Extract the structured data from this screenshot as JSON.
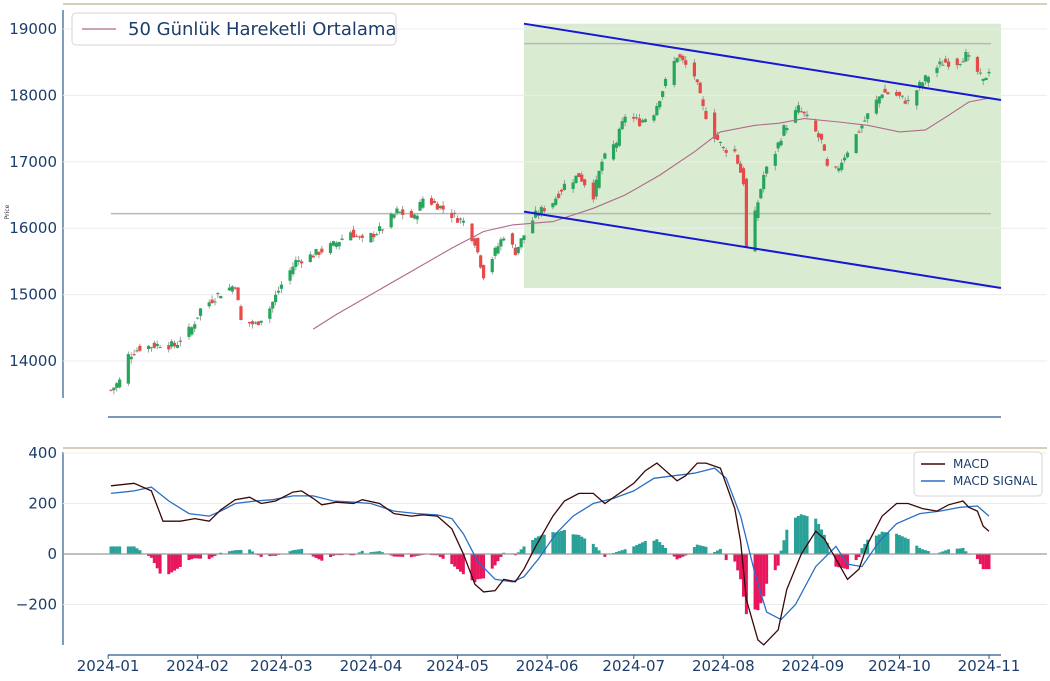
{
  "chart_data": [
    {
      "type": "candlestick",
      "panel": "price",
      "ylabel": "Price",
      "ylim": [
        13400,
        19200
      ],
      "yticks": [
        14000,
        15000,
        16000,
        17000,
        18000,
        19000
      ],
      "grid": "horizontal",
      "legend": {
        "position": "top-left",
        "entries": [
          "50 Günlük Hareketli Ortalama"
        ]
      },
      "colors": {
        "up": "#26a65b",
        "down": "#e84a4a",
        "ma": "#b06a8a",
        "channel": "#1717d4",
        "channel_fill": "#d9ecd1",
        "hline": "#b8b8b8"
      },
      "date_start": "2024-01-02",
      "date_end": "2024-11-01",
      "ohlc_anchor_closes": [
        [
          "2024-01-02",
          13560
        ],
        [
          "2024-01-05",
          13700
        ],
        [
          "2024-01-08",
          14080
        ],
        [
          "2024-01-12",
          14200
        ],
        [
          "2024-01-19",
          14250
        ],
        [
          "2024-01-24",
          14230
        ],
        [
          "2024-01-30",
          14500
        ],
        [
          "2024-02-02",
          14780
        ],
        [
          "2024-02-08",
          15000
        ],
        [
          "2024-02-14",
          15150
        ],
        [
          "2024-02-16",
          14600
        ],
        [
          "2024-02-21",
          14550
        ],
        [
          "2024-02-26",
          14800
        ],
        [
          "2024-03-01",
          15150
        ],
        [
          "2024-03-06",
          15500
        ],
        [
          "2024-03-12",
          15600
        ],
        [
          "2024-03-19",
          15750
        ],
        [
          "2024-03-25",
          15950
        ],
        [
          "2024-03-29",
          15800
        ],
        [
          "2024-04-05",
          16000
        ],
        [
          "2024-04-10",
          16250
        ],
        [
          "2024-04-16",
          16150
        ],
        [
          "2024-04-19",
          16450
        ],
        [
          "2024-04-24",
          16350
        ],
        [
          "2024-04-29",
          16200
        ],
        [
          "2024-05-03",
          16100
        ],
        [
          "2024-05-07",
          15800
        ],
        [
          "2024-05-10",
          15300
        ],
        [
          "2024-05-14",
          15650
        ],
        [
          "2024-05-17",
          15900
        ],
        [
          "2024-05-21",
          15650
        ],
        [
          "2024-05-24",
          15900
        ],
        [
          "2024-05-28",
          16200
        ],
        [
          "2024-06-03",
          16400
        ],
        [
          "2024-06-07",
          16650
        ],
        [
          "2024-06-12",
          16800
        ],
        [
          "2024-06-17",
          16500
        ],
        [
          "2024-06-20",
          17000
        ],
        [
          "2024-06-25",
          17300
        ],
        [
          "2024-06-28",
          17700
        ],
        [
          "2024-07-03",
          17600
        ],
        [
          "2024-07-08",
          17750
        ],
        [
          "2024-07-12",
          18200
        ],
        [
          "2024-07-16",
          18600
        ],
        [
          "2024-07-19",
          18450
        ],
        [
          "2024-07-22",
          18300
        ],
        [
          "2024-07-25",
          17800
        ],
        [
          "2024-07-29",
          17400
        ],
        [
          "2024-08-01",
          17200
        ],
        [
          "2024-08-05",
          17150
        ],
        [
          "2024-08-08",
          16700
        ],
        [
          "2024-08-09",
          15700
        ],
        [
          "2024-08-12",
          16200
        ],
        [
          "2024-08-15",
          16800
        ],
        [
          "2024-08-19",
          17150
        ],
        [
          "2024-08-22",
          17500
        ],
        [
          "2024-08-27",
          17800
        ],
        [
          "2024-08-30",
          17650
        ],
        [
          "2024-09-04",
          17300
        ],
        [
          "2024-09-06",
          16900
        ],
        [
          "2024-09-09",
          16850
        ],
        [
          "2024-09-12",
          17100
        ],
        [
          "2024-09-16",
          17400
        ],
        [
          "2024-09-20",
          17700
        ],
        [
          "2024-09-25",
          18050
        ],
        [
          "2024-09-30",
          18000
        ],
        [
          "2024-10-04",
          17900
        ],
        [
          "2024-10-08",
          18150
        ],
        [
          "2024-10-11",
          18300
        ],
        [
          "2024-10-16",
          18500
        ],
        [
          "2024-10-21",
          18500
        ],
        [
          "2024-10-24",
          18600
        ],
        [
          "2024-10-28",
          18350
        ],
        [
          "2024-10-30",
          18200
        ],
        [
          "2024-11-01",
          18400
        ]
      ],
      "moving_average_50": [
        [
          "2024-03-12",
          14480
        ],
        [
          "2024-03-20",
          14700
        ],
        [
          "2024-04-01",
          15000
        ],
        [
          "2024-04-15",
          15350
        ],
        [
          "2024-04-29",
          15700
        ],
        [
          "2024-05-10",
          15950
        ],
        [
          "2024-05-20",
          16050
        ],
        [
          "2024-06-03",
          16100
        ],
        [
          "2024-06-17",
          16300
        ],
        [
          "2024-06-28",
          16500
        ],
        [
          "2024-07-10",
          16800
        ],
        [
          "2024-07-22",
          17150
        ],
        [
          "2024-07-31",
          17450
        ],
        [
          "2024-08-12",
          17550
        ],
        [
          "2024-08-20",
          17580
        ],
        [
          "2024-08-29",
          17650
        ],
        [
          "2024-09-10",
          17600
        ],
        [
          "2024-09-20",
          17550
        ],
        [
          "2024-10-01",
          17450
        ],
        [
          "2024-10-10",
          17480
        ],
        [
          "2024-10-18",
          17700
        ],
        [
          "2024-10-25",
          17900
        ],
        [
          "2024-11-01",
          17960
        ]
      ],
      "horizontal_lines": [
        {
          "value": 16220,
          "from": "2024-01-02",
          "to": "2024-11-01"
        },
        {
          "value": 18780,
          "from": "2024-05-24",
          "to": "2024-11-01"
        }
      ],
      "channel": {
        "upper": [
          [
            "2024-05-24",
            19080
          ],
          [
            "2024-11-01",
            17930
          ]
        ],
        "lower": [
          [
            "2024-05-24",
            16250
          ],
          [
            "2024-11-01",
            15100
          ]
        ]
      },
      "shaded_region": {
        "from": "2024-05-24",
        "to": "2024-11-01",
        "y": [
          15100,
          19080
        ]
      }
    },
    {
      "type": "line+bar",
      "panel": "macd",
      "ylim": [
        -380,
        420
      ],
      "yticks": [
        400,
        200,
        0,
        -200
      ],
      "legend": {
        "position": "top-right",
        "entries": [
          "MACD",
          "MACD SIGNAL"
        ]
      },
      "colors": {
        "macd": "#3a0808",
        "signal": "#2a6fc4",
        "hist_pos": "#2aa198",
        "hist_neg": "#e8175d",
        "zero": "#9a9a9a"
      },
      "series": [
        {
          "name": "MACD",
          "values": [
            [
              "2024-01-02",
              270
            ],
            [
              "2024-01-10",
              280
            ],
            [
              "2024-01-16",
              250
            ],
            [
              "2024-01-20",
              130
            ],
            [
              "2024-01-26",
              130
            ],
            [
              "2024-01-31",
              140
            ],
            [
              "2024-02-05",
              130
            ],
            [
              "2024-02-09",
              175
            ],
            [
              "2024-02-14",
              215
            ],
            [
              "2024-02-19",
              225
            ],
            [
              "2024-02-23",
              200
            ],
            [
              "2024-02-28",
              210
            ],
            [
              "2024-03-05",
              245
            ],
            [
              "2024-03-08",
              250
            ],
            [
              "2024-03-12",
              220
            ],
            [
              "2024-03-15",
              195
            ],
            [
              "2024-03-20",
              205
            ],
            [
              "2024-03-26",
              200
            ],
            [
              "2024-03-29",
              215
            ],
            [
              "2024-04-04",
              200
            ],
            [
              "2024-04-09",
              160
            ],
            [
              "2024-04-15",
              150
            ],
            [
              "2024-04-19",
              155
            ],
            [
              "2024-04-24",
              150
            ],
            [
              "2024-04-29",
              100
            ],
            [
              "2024-05-03",
              0
            ],
            [
              "2024-05-07",
              -120
            ],
            [
              "2024-05-10",
              -150
            ],
            [
              "2024-05-14",
              -145
            ],
            [
              "2024-05-17",
              -100
            ],
            [
              "2024-05-21",
              -110
            ],
            [
              "2024-05-24",
              -60
            ],
            [
              "2024-05-28",
              30
            ],
            [
              "2024-06-03",
              150
            ],
            [
              "2024-06-07",
              210
            ],
            [
              "2024-06-12",
              240
            ],
            [
              "2024-06-17",
              240
            ],
            [
              "2024-06-21",
              200
            ],
            [
              "2024-06-26",
              240
            ],
            [
              "2024-07-01",
              280
            ],
            [
              "2024-07-05",
              330
            ],
            [
              "2024-07-09",
              360
            ],
            [
              "2024-07-12",
              330
            ],
            [
              "2024-07-16",
              290
            ],
            [
              "2024-07-19",
              310
            ],
            [
              "2024-07-23",
              360
            ],
            [
              "2024-07-26",
              360
            ],
            [
              "2024-07-31",
              340
            ],
            [
              "2024-08-05",
              180
            ],
            [
              "2024-08-07",
              50
            ],
            [
              "2024-08-09",
              -180
            ],
            [
              "2024-08-13",
              -340
            ],
            [
              "2024-08-15",
              -360
            ],
            [
              "2024-08-20",
              -300
            ],
            [
              "2024-08-23",
              -140
            ],
            [
              "2024-08-28",
              0
            ],
            [
              "2024-09-02",
              90
            ],
            [
              "2024-09-05",
              60
            ],
            [
              "2024-09-10",
              -40
            ],
            [
              "2024-09-13",
              -100
            ],
            [
              "2024-09-17",
              -60
            ],
            [
              "2024-09-20",
              40
            ],
            [
              "2024-09-25",
              150
            ],
            [
              "2024-09-30",
              200
            ],
            [
              "2024-10-04",
              200
            ],
            [
              "2024-10-09",
              180
            ],
            [
              "2024-10-14",
              170
            ],
            [
              "2024-10-18",
              195
            ],
            [
              "2024-10-23",
              210
            ],
            [
              "2024-10-25",
              185
            ],
            [
              "2024-10-28",
              170
            ],
            [
              "2024-10-30",
              110
            ],
            [
              "2024-11-01",
              90
            ]
          ]
        },
        {
          "name": "MACD SIGNAL",
          "values": [
            [
              "2024-01-02",
              240
            ],
            [
              "2024-01-10",
              250
            ],
            [
              "2024-01-16",
              265
            ],
            [
              "2024-01-22",
              210
            ],
            [
              "2024-01-29",
              160
            ],
            [
              "2024-02-05",
              150
            ],
            [
              "2024-02-09",
              170
            ],
            [
              "2024-02-14",
              200
            ],
            [
              "2024-02-21",
              210
            ],
            [
              "2024-02-27",
              215
            ],
            [
              "2024-03-05",
              230
            ],
            [
              "2024-03-12",
              230
            ],
            [
              "2024-03-19",
              210
            ],
            [
              "2024-03-26",
              205
            ],
            [
              "2024-04-01",
              200
            ],
            [
              "2024-04-09",
              170
            ],
            [
              "2024-04-17",
              160
            ],
            [
              "2024-04-24",
              155
            ],
            [
              "2024-04-29",
              140
            ],
            [
              "2024-05-03",
              80
            ],
            [
              "2024-05-08",
              -30
            ],
            [
              "2024-05-14",
              -100
            ],
            [
              "2024-05-20",
              -110
            ],
            [
              "2024-05-24",
              -90
            ],
            [
              "2024-05-29",
              -20
            ],
            [
              "2024-06-04",
              80
            ],
            [
              "2024-06-10",
              150
            ],
            [
              "2024-06-17",
              200
            ],
            [
              "2024-06-24",
              220
            ],
            [
              "2024-07-01",
              250
            ],
            [
              "2024-07-08",
              300
            ],
            [
              "2024-07-15",
              310
            ],
            [
              "2024-07-22",
              320
            ],
            [
              "2024-07-29",
              340
            ],
            [
              "2024-08-02",
              300
            ],
            [
              "2024-08-07",
              150
            ],
            [
              "2024-08-12",
              -80
            ],
            [
              "2024-08-16",
              -230
            ],
            [
              "2024-08-21",
              -260
            ],
            [
              "2024-08-26",
              -200
            ],
            [
              "2024-09-02",
              -50
            ],
            [
              "2024-09-09",
              30
            ],
            [
              "2024-09-13",
              -40
            ],
            [
              "2024-09-18",
              -50
            ],
            [
              "2024-09-24",
              50
            ],
            [
              "2024-09-30",
              120
            ],
            [
              "2024-10-08",
              160
            ],
            [
              "2024-10-15",
              170
            ],
            [
              "2024-10-22",
              185
            ],
            [
              "2024-10-28",
              190
            ],
            [
              "2024-11-01",
              150
            ]
          ]
        }
      ]
    }
  ],
  "x_tick_labels": [
    "2024-01",
    "2024-02",
    "2024-03",
    "2024-04",
    "2024-05",
    "2024-06",
    "2024-07",
    "2024-08",
    "2024-09",
    "2024-10",
    "2024-11"
  ]
}
